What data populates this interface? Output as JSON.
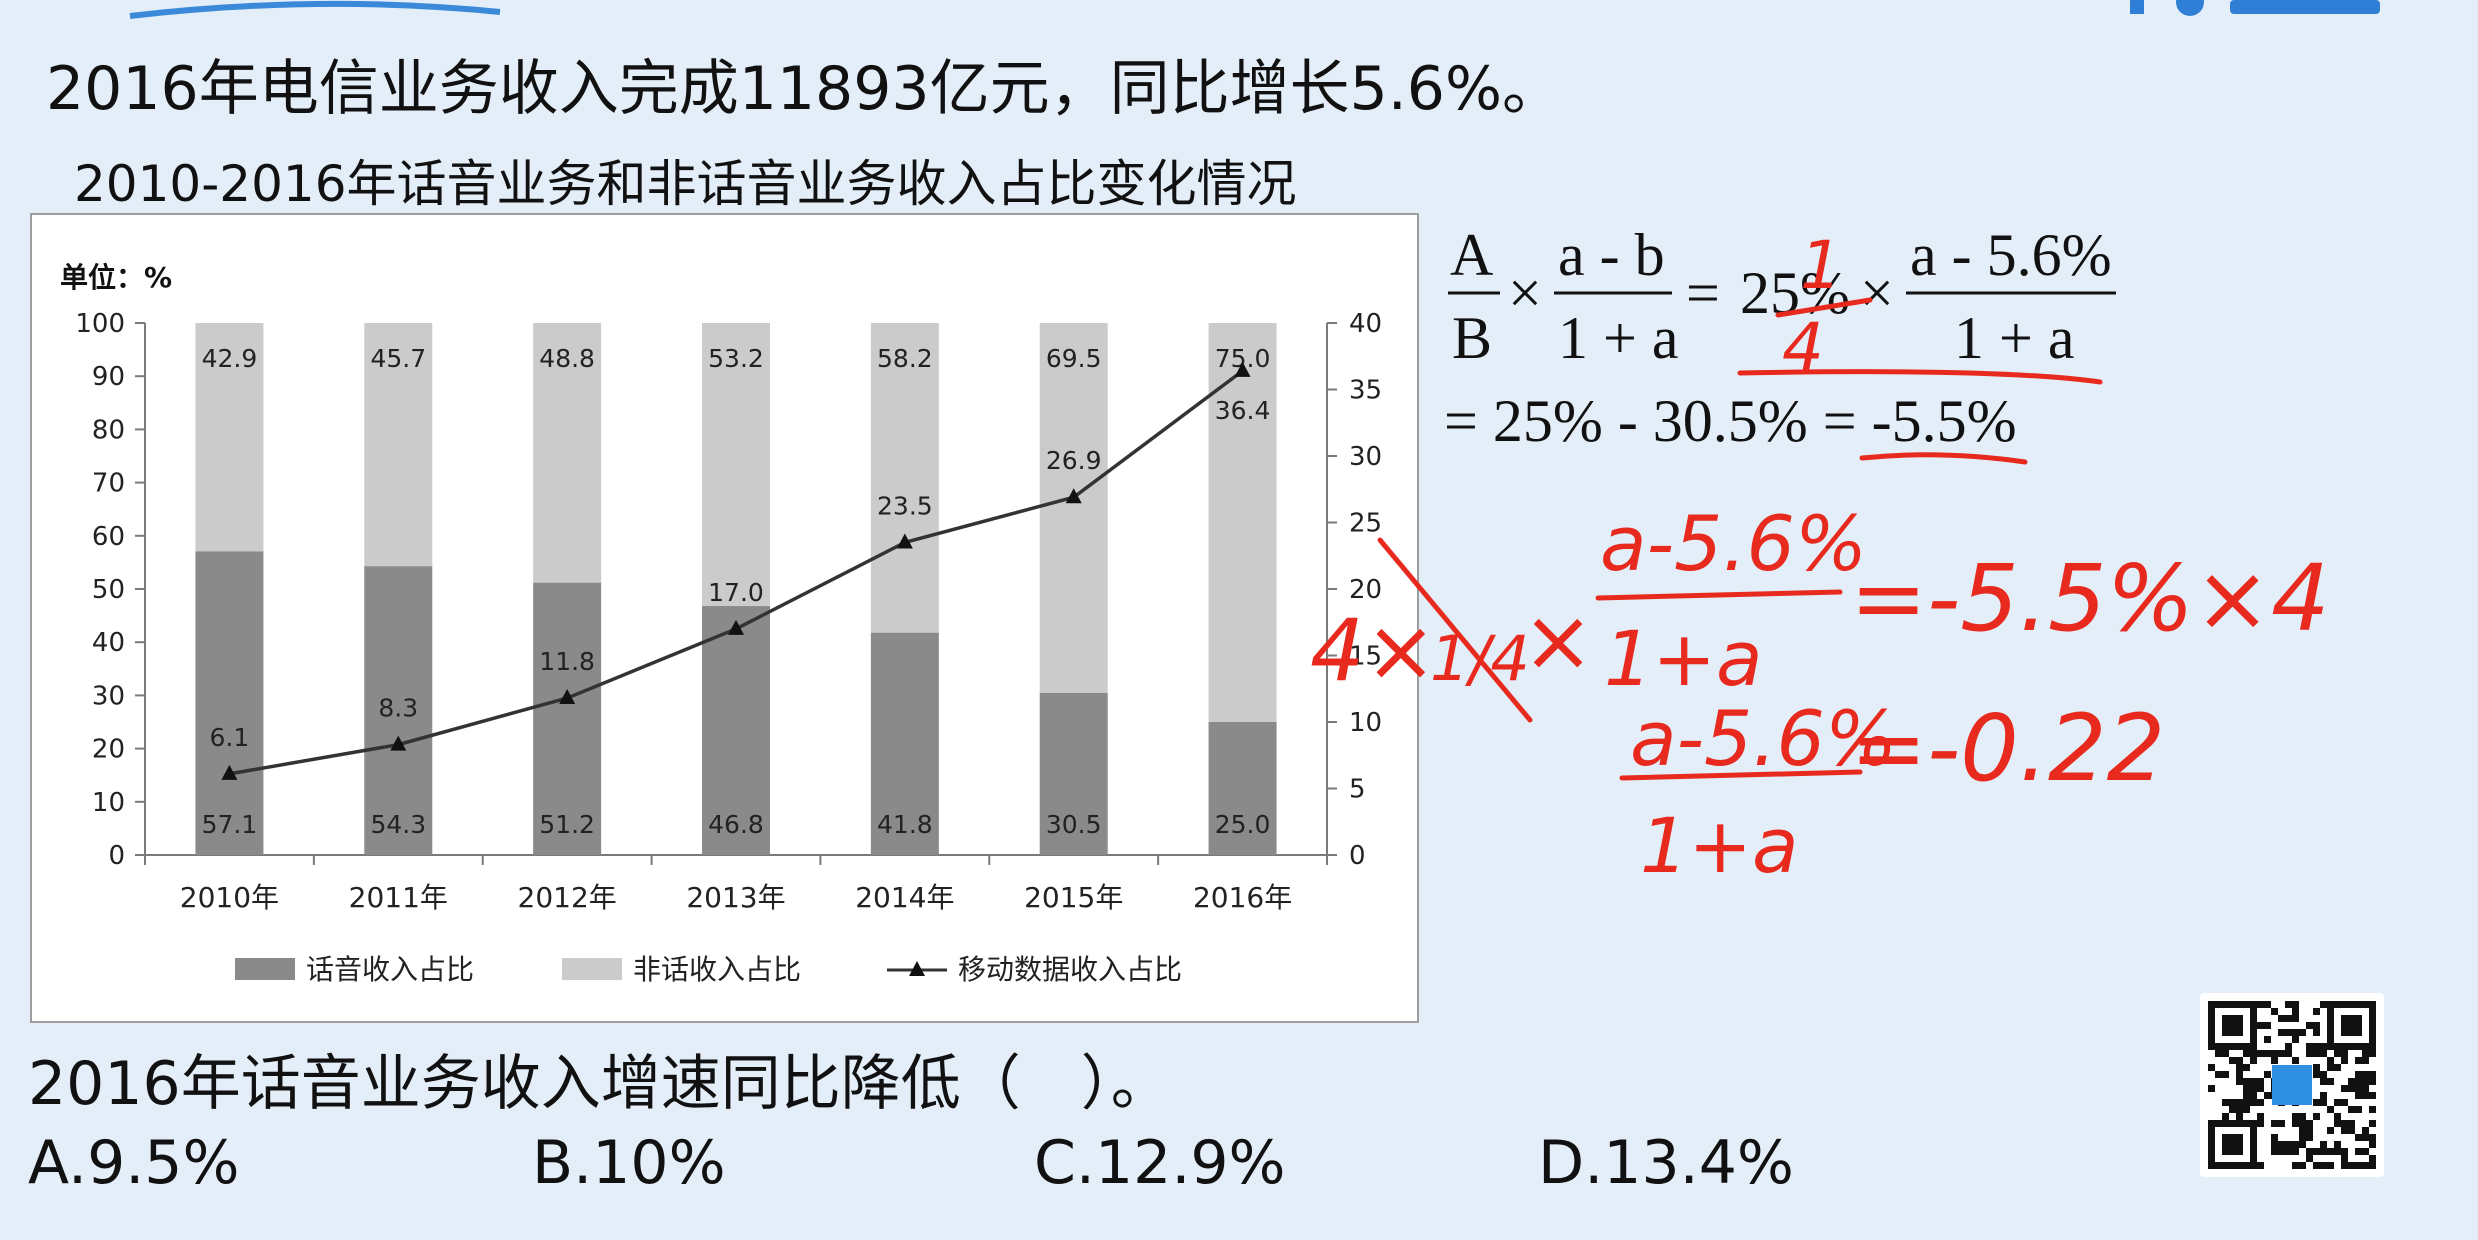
{
  "headline": "2016年电信业务收入完成11893亿元，同比增长5.6%。",
  "question": "2016年话音业务收入增速同比降低（　）。",
  "options": [
    "A.9.5%",
    "B.10%",
    "C.12.9%",
    "D.13.4%"
  ],
  "chart_data": {
    "type": "bar",
    "title": "2010-2016年话音业务和非话音业务收入占比变化情况",
    "unit_label": "单位：%",
    "categories": [
      "2010年",
      "2011年",
      "2012年",
      "2013年",
      "2014年",
      "2015年",
      "2016年"
    ],
    "stacked": true,
    "ylim": [
      0,
      100
    ],
    "y2lim": [
      0,
      40
    ],
    "y_ticks": [
      0,
      10,
      20,
      30,
      40,
      50,
      60,
      70,
      80,
      90,
      100
    ],
    "y2_ticks": [
      0,
      5,
      10,
      15,
      20,
      25,
      30,
      35,
      40
    ],
    "series": [
      {
        "name": "话音收入占比",
        "type": "bar",
        "axis": "left",
        "color": "#8a8a8a",
        "values": [
          57.1,
          54.3,
          51.2,
          46.8,
          41.8,
          30.5,
          25.0
        ]
      },
      {
        "name": "非话收入占比",
        "type": "bar",
        "axis": "left",
        "color": "#cbcbcb",
        "values": [
          42.9,
          45.7,
          48.8,
          53.2,
          58.2,
          69.5,
          75.0
        ]
      },
      {
        "name": "移动数据收入占比",
        "type": "line",
        "axis": "right",
        "color": "#333333",
        "values": [
          6.1,
          8.3,
          11.8,
          17.0,
          23.5,
          26.9,
          36.4
        ]
      }
    ],
    "legend_position": "bottom",
    "grid": false
  },
  "formula": {
    "A": "A",
    "B": "B",
    "times": "×",
    "eq": "=",
    "ab_num": "a - b",
    "ab_den": "1 + a",
    "pct25": "25%",
    "a56_num": "a - 5.6%",
    "a56_den": "1 + a",
    "line2": "= 25% - 30.5% = -5.5%"
  },
  "handwriting": {
    "quarter_num": "1",
    "quarter_den": "4",
    "four_x": "4×",
    "one_over_four": "1/4",
    "x": "×",
    "frac1_num": "a-5.6%",
    "frac1_den": "1+a",
    "rhs1": "=-5.5%×4",
    "frac2_num": "a-5.6%",
    "frac2_den": "1+a",
    "rhs2": "=-0.22"
  },
  "colors": {
    "background": "#e3eef9",
    "handwriting": "#e8291d"
  }
}
